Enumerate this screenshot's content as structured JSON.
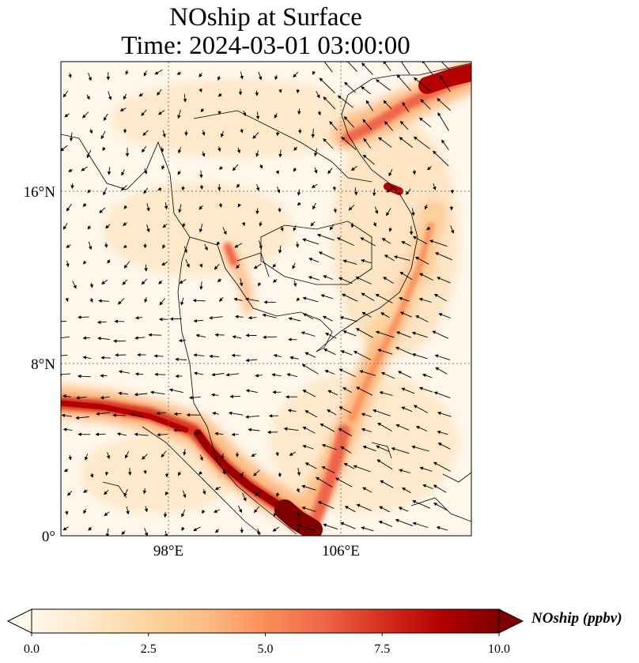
{
  "title": {
    "line1": "NOship at Surface",
    "line2": "Time: 2024-03-01 03:00:00"
  },
  "map": {
    "lat_labels": [
      "16°N",
      "8°N",
      "0°"
    ],
    "lon_labels": [
      "98°E",
      "106°E"
    ],
    "gridlines": "dotted",
    "colormap": "OrRd",
    "colors": {
      "low": "#fff7ec",
      "mid": "#fdbb84",
      "high": "#d7301f",
      "max": "#7f0000",
      "coast": "#000000",
      "grid": "#777777"
    }
  },
  "colorbar": {
    "label": "NOship (ppbv)",
    "ticks": [
      "0.0",
      "2.5",
      "5.0",
      "7.5",
      "10.0"
    ],
    "extend": "both",
    "min": 0,
    "max": 10
  }
}
